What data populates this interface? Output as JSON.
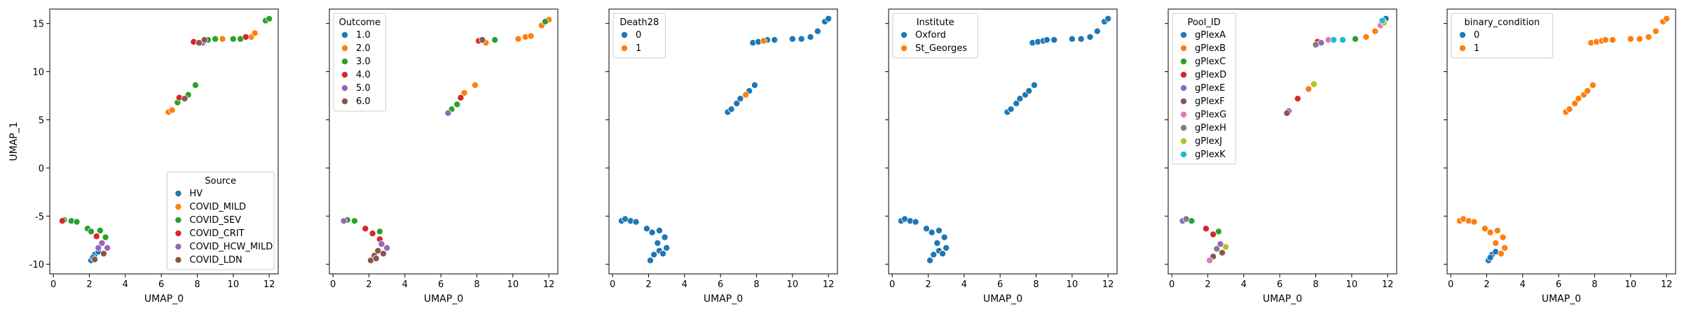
{
  "chart_data": [
    {
      "type": "scatter",
      "xlabel": "UMAP_0",
      "ylabel": "UMAP_1",
      "xlim": [
        -0.2,
        12.5
      ],
      "ylim": [
        -11,
        16.5
      ],
      "xticks": [
        "0",
        "2",
        "4",
        "6",
        "8",
        "10",
        "12"
      ],
      "yticks": [
        "-10",
        "-5",
        "0",
        "5",
        "10",
        "15"
      ],
      "legend": {
        "title": "Source",
        "position": "lower-right",
        "entries": [
          "HV",
          "COVID_MILD",
          "COVID_SEV",
          "COVID_CRIT",
          "COVID_HCW_MILD",
          "COVID_LDN"
        ]
      },
      "colors": [
        "#1f77b4",
        "#ff7f0e",
        "#2ca02c",
        "#d62728",
        "#9467bd",
        "#8c564b"
      ],
      "series": [
        {
          "name": "HV",
          "points": [
            [
              2.1,
              -9.6
            ],
            [
              2.3,
              -9.0
            ],
            [
              2.5,
              -8.7
            ],
            [
              2.2,
              -9.3
            ]
          ]
        },
        {
          "name": "COVID_MILD",
          "points": [
            [
              6.4,
              5.8
            ],
            [
              6.6,
              6.0
            ],
            [
              9.4,
              13.4
            ],
            [
              11.0,
              13.6
            ],
            [
              11.2,
              14.0
            ]
          ]
        },
        {
          "name": "COVID_SEV",
          "points": [
            [
              0.6,
              -5.4
            ],
            [
              1.0,
              -5.5
            ],
            [
              1.3,
              -5.6
            ],
            [
              1.9,
              -6.3
            ],
            [
              2.1,
              -6.6
            ],
            [
              2.6,
              -6.5
            ],
            [
              2.9,
              -7.2
            ],
            [
              6.9,
              6.8
            ],
            [
              7.5,
              7.6
            ],
            [
              7.9,
              8.6
            ],
            [
              8.6,
              13.3
            ],
            [
              9.0,
              13.4
            ],
            [
              10.0,
              13.4
            ],
            [
              10.4,
              13.4
            ],
            [
              11.8,
              15.3
            ],
            [
              12.0,
              15.5
            ]
          ]
        },
        {
          "name": "COVID_CRIT",
          "points": [
            [
              0.5,
              -5.5
            ],
            [
              2.4,
              -7.1
            ],
            [
              7.0,
              7.3
            ],
            [
              7.8,
              13.1
            ],
            [
              10.7,
              13.6
            ]
          ]
        },
        {
          "name": "COVID_HCW_MILD",
          "points": [
            [
              2.7,
              -7.8
            ],
            [
              3.0,
              -8.3
            ],
            [
              2.5,
              -8.3
            ],
            [
              8.3,
              13.0
            ]
          ]
        },
        {
          "name": "COVID_LDN",
          "points": [
            [
              2.3,
              -9.5
            ],
            [
              2.8,
              -8.9
            ],
            [
              7.3,
              7.2
            ],
            [
              8.1,
              13.0
            ],
            [
              8.4,
              13.3
            ]
          ]
        }
      ]
    },
    {
      "type": "scatter",
      "xlabel": "UMAP_0",
      "ylabel": "",
      "xlim": [
        -0.2,
        12.5
      ],
      "ylim": [
        -11,
        16.5
      ],
      "xticks": [
        "0",
        "2",
        "4",
        "6",
        "8",
        "10",
        "12"
      ],
      "legend": {
        "title": "Outcome",
        "position": "upper-left",
        "entries": [
          "1.0",
          "2.0",
          "3.0",
          "4.0",
          "5.0",
          "6.0"
        ]
      },
      "colors": [
        "#1f77b4",
        "#ff7f0e",
        "#2ca02c",
        "#d62728",
        "#9467bd",
        "#8c564b"
      ],
      "series": [
        {
          "name": "1.0",
          "points": []
        },
        {
          "name": "2.0",
          "points": [
            [
              7.3,
              7.8
            ],
            [
              7.9,
              8.6
            ],
            [
              8.5,
              13.0
            ],
            [
              10.3,
              13.4
            ],
            [
              10.7,
              13.6
            ],
            [
              11.0,
              13.7
            ],
            [
              11.6,
              14.8
            ],
            [
              12.0,
              15.4
            ]
          ]
        },
        {
          "name": "3.0",
          "points": [
            [
              0.8,
              -5.4
            ],
            [
              1.2,
              -5.5
            ],
            [
              2.6,
              -6.6
            ],
            [
              6.6,
              6.1
            ],
            [
              6.9,
              6.6
            ],
            [
              9.0,
              13.3
            ],
            [
              11.8,
              15.2
            ]
          ]
        },
        {
          "name": "4.0",
          "points": [
            [
              1.8,
              -6.3
            ],
            [
              2.2,
              -6.8
            ],
            [
              2.6,
              -7.4
            ],
            [
              7.1,
              7.3
            ],
            [
              8.1,
              13.2
            ]
          ]
        },
        {
          "name": "5.0",
          "points": [
            [
              0.6,
              -5.5
            ],
            [
              2.7,
              -7.9
            ],
            [
              3.0,
              -8.3
            ],
            [
              6.4,
              5.7
            ]
          ]
        },
        {
          "name": "6.0",
          "points": [
            [
              2.1,
              -9.6
            ],
            [
              2.3,
              -9.1
            ],
            [
              2.5,
              -8.6
            ],
            [
              2.8,
              -8.9
            ],
            [
              2.4,
              -9.4
            ],
            [
              8.3,
              13.3
            ]
          ]
        }
      ]
    },
    {
      "type": "scatter",
      "xlabel": "UMAP_0",
      "ylabel": "",
      "xlim": [
        -0.2,
        12.5
      ],
      "ylim": [
        -11,
        16.5
      ],
      "xticks": [
        "0",
        "2",
        "4",
        "6",
        "8",
        "10",
        "12"
      ],
      "legend": {
        "title": "Death28",
        "position": "upper-left",
        "entries": [
          "0",
          "1"
        ]
      },
      "colors": [
        "#1f77b4",
        "#ff7f0e"
      ],
      "series": [
        {
          "name": "0",
          "points": [
            [
              0.5,
              -5.5
            ],
            [
              0.7,
              -5.3
            ],
            [
              1.0,
              -5.5
            ],
            [
              1.3,
              -5.6
            ],
            [
              1.9,
              -6.3
            ],
            [
              2.2,
              -6.7
            ],
            [
              2.6,
              -6.5
            ],
            [
              2.9,
              -7.2
            ],
            [
              2.5,
              -7.8
            ],
            [
              3.0,
              -8.3
            ],
            [
              2.1,
              -9.6
            ],
            [
              2.3,
              -9.0
            ],
            [
              2.6,
              -8.6
            ],
            [
              2.8,
              -8.9
            ],
            [
              6.4,
              5.8
            ],
            [
              6.6,
              6.1
            ],
            [
              6.9,
              6.7
            ],
            [
              7.1,
              7.2
            ],
            [
              7.6,
              8.0
            ],
            [
              7.9,
              8.6
            ],
            [
              7.8,
              13.0
            ],
            [
              8.1,
              13.1
            ],
            [
              8.6,
              13.3
            ],
            [
              9.0,
              13.3
            ],
            [
              10.0,
              13.4
            ],
            [
              10.5,
              13.4
            ],
            [
              11.0,
              13.6
            ],
            [
              11.4,
              14.2
            ],
            [
              11.8,
              15.2
            ],
            [
              12.0,
              15.5
            ]
          ]
        },
        {
          "name": "1",
          "points": [
            [
              7.4,
              7.6
            ],
            [
              8.4,
              13.2
            ]
          ]
        }
      ]
    },
    {
      "type": "scatter",
      "xlabel": "UMAP_0",
      "ylabel": "",
      "xlim": [
        -0.2,
        12.5
      ],
      "ylim": [
        -11,
        16.5
      ],
      "xticks": [
        "0",
        "2",
        "4",
        "6",
        "8",
        "10",
        "12"
      ],
      "legend": {
        "title": "Institute",
        "position": "upper-left",
        "entries": [
          "Oxford",
          "St_Georges"
        ]
      },
      "colors": [
        "#1f77b4",
        "#ff7f0e"
      ],
      "series": [
        {
          "name": "Oxford",
          "points": [
            [
              0.5,
              -5.5
            ],
            [
              0.7,
              -5.3
            ],
            [
              1.0,
              -5.5
            ],
            [
              1.3,
              -5.6
            ],
            [
              1.9,
              -6.3
            ],
            [
              2.2,
              -6.7
            ],
            [
              2.6,
              -6.5
            ],
            [
              2.9,
              -7.2
            ],
            [
              2.5,
              -7.8
            ],
            [
              3.0,
              -8.3
            ],
            [
              2.1,
              -9.6
            ],
            [
              2.3,
              -9.0
            ],
            [
              2.6,
              -8.6
            ],
            [
              2.8,
              -8.9
            ],
            [
              6.4,
              5.8
            ],
            [
              6.6,
              6.1
            ],
            [
              6.9,
              6.7
            ],
            [
              7.1,
              7.2
            ],
            [
              7.4,
              7.6
            ],
            [
              7.6,
              8.0
            ],
            [
              7.9,
              8.6
            ],
            [
              7.8,
              13.0
            ],
            [
              8.1,
              13.1
            ],
            [
              8.4,
              13.2
            ],
            [
              8.6,
              13.3
            ],
            [
              9.0,
              13.3
            ],
            [
              10.0,
              13.4
            ],
            [
              10.5,
              13.4
            ],
            [
              11.0,
              13.6
            ],
            [
              11.4,
              14.2
            ],
            [
              11.8,
              15.2
            ],
            [
              12.0,
              15.5
            ]
          ]
        },
        {
          "name": "St_Georges",
          "points": []
        }
      ]
    },
    {
      "type": "scatter",
      "xlabel": "UMAP_0",
      "ylabel": "",
      "xlim": [
        -0.2,
        12.5
      ],
      "ylim": [
        -11,
        16.5
      ],
      "xticks": [
        "0",
        "2",
        "4",
        "6",
        "8",
        "10",
        "12"
      ],
      "legend": {
        "title": "Pool_ID",
        "position": "upper-left",
        "entries": [
          "gPlexA",
          "gPlexB",
          "gPlexC",
          "gPlexD",
          "gPlexE",
          "gPlexF",
          "gPlexG",
          "gPlexH",
          "gPlexJ",
          "gPlexK"
        ]
      },
      "colors": [
        "#1f77b4",
        "#ff7f0e",
        "#2ca02c",
        "#d62728",
        "#9467bd",
        "#8c564b",
        "#e377c2",
        "#7f7f7f",
        "#bcbd22",
        "#17becf"
      ],
      "series": [
        {
          "name": "gPlexA",
          "points": [
            [
              11.9,
              15.5
            ]
          ]
        },
        {
          "name": "gPlexB",
          "points": [
            [
              7.6,
              8.2
            ],
            [
              10.8,
              13.6
            ],
            [
              11.3,
              14.2
            ]
          ]
        },
        {
          "name": "gPlexC",
          "points": [
            [
              1.1,
              -5.5
            ],
            [
              2.6,
              -6.6
            ],
            [
              10.2,
              13.4
            ]
          ]
        },
        {
          "name": "gPlexD",
          "points": [
            [
              1.9,
              -6.3
            ],
            [
              2.3,
              -6.9
            ],
            [
              7.0,
              7.2
            ],
            [
              8.1,
              13.1
            ]
          ]
        },
        {
          "name": "gPlexE",
          "points": [
            [
              0.6,
              -5.5
            ],
            [
              2.7,
              -7.9
            ],
            [
              6.5,
              5.9
            ],
            [
              8.3,
              13.0
            ]
          ]
        },
        {
          "name": "gPlexF",
          "points": [
            [
              2.3,
              -9.2
            ],
            [
              2.8,
              -8.8
            ],
            [
              6.4,
              5.7
            ]
          ]
        },
        {
          "name": "gPlexG",
          "points": [
            [
              2.1,
              -9.6
            ],
            [
              8.7,
              13.3
            ],
            [
              11.6,
              14.8
            ]
          ]
        },
        {
          "name": "gPlexH",
          "points": [
            [
              0.8,
              -5.3
            ],
            [
              2.5,
              -8.4
            ],
            [
              8.0,
              12.8
            ]
          ]
        },
        {
          "name": "gPlexJ",
          "points": [
            [
              3.0,
              -8.2
            ],
            [
              7.9,
              8.7
            ],
            [
              11.8,
              15.1
            ]
          ]
        },
        {
          "name": "gPlexK",
          "points": [
            [
              9.0,
              13.3
            ],
            [
              9.5,
              13.3
            ],
            [
              11.7,
              15.3
            ]
          ]
        }
      ]
    },
    {
      "type": "scatter",
      "xlabel": "UMAP_0",
      "ylabel": "",
      "xlim": [
        -0.2,
        12.5
      ],
      "ylim": [
        -11,
        16.5
      ],
      "xticks": [
        "0",
        "2",
        "4",
        "6",
        "8",
        "10",
        "12"
      ],
      "legend": {
        "title": "binary_condition",
        "position": "upper-left",
        "entries": [
          "0",
          "1"
        ]
      },
      "colors": [
        "#1f77b4",
        "#ff7f0e"
      ],
      "series": [
        {
          "name": "0",
          "points": [
            [
              2.1,
              -9.6
            ],
            [
              2.3,
              -9.0
            ],
            [
              2.5,
              -8.7
            ],
            [
              2.2,
              -9.3
            ]
          ]
        },
        {
          "name": "1",
          "points": [
            [
              0.5,
              -5.5
            ],
            [
              0.7,
              -5.3
            ],
            [
              1.0,
              -5.5
            ],
            [
              1.3,
              -5.6
            ],
            [
              1.9,
              -6.3
            ],
            [
              2.2,
              -6.7
            ],
            [
              2.6,
              -6.5
            ],
            [
              2.9,
              -7.2
            ],
            [
              2.5,
              -7.8
            ],
            [
              3.0,
              -8.3
            ],
            [
              2.8,
              -8.9
            ],
            [
              6.4,
              5.8
            ],
            [
              6.6,
              6.1
            ],
            [
              6.9,
              6.7
            ],
            [
              7.1,
              7.2
            ],
            [
              7.4,
              7.6
            ],
            [
              7.6,
              8.0
            ],
            [
              7.9,
              8.6
            ],
            [
              7.8,
              13.0
            ],
            [
              8.1,
              13.1
            ],
            [
              8.4,
              13.2
            ],
            [
              8.6,
              13.3
            ],
            [
              9.0,
              13.3
            ],
            [
              10.0,
              13.4
            ],
            [
              10.5,
              13.4
            ],
            [
              11.0,
              13.6
            ],
            [
              11.4,
              14.2
            ],
            [
              11.8,
              15.2
            ],
            [
              12.0,
              15.5
            ]
          ]
        }
      ]
    }
  ]
}
